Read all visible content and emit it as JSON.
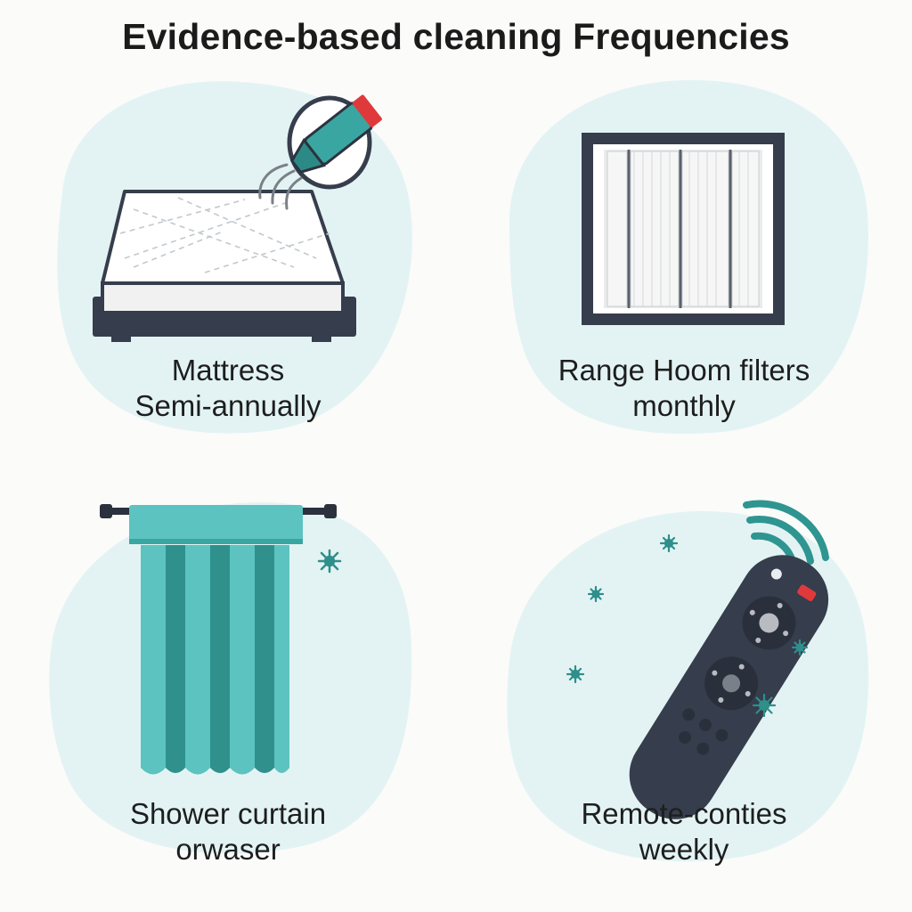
{
  "title": "Evidence-based cleaning Frequencies",
  "colors": {
    "blob": "#e3f3f4",
    "teal": "#3aa6a1",
    "teal_dark": "#2c8a86",
    "navy": "#363d4c",
    "red": "#e0393b",
    "germ": "#2f8f8a"
  },
  "items": [
    {
      "id": "mattress",
      "icon": "mattress-icon",
      "line1": "Mattress",
      "line2": "Semi-annually"
    },
    {
      "id": "range-hood",
      "icon": "range-hood-filter-icon",
      "line1": "Range Hoom filters",
      "line2": "monthly"
    },
    {
      "id": "shower-curtain",
      "icon": "shower-curtain-icon",
      "line1": "Shower curtain",
      "line2": "orwaser"
    },
    {
      "id": "remote",
      "icon": "remote-control-icon",
      "line1": "Remote-conties",
      "line2": "weekly"
    }
  ]
}
